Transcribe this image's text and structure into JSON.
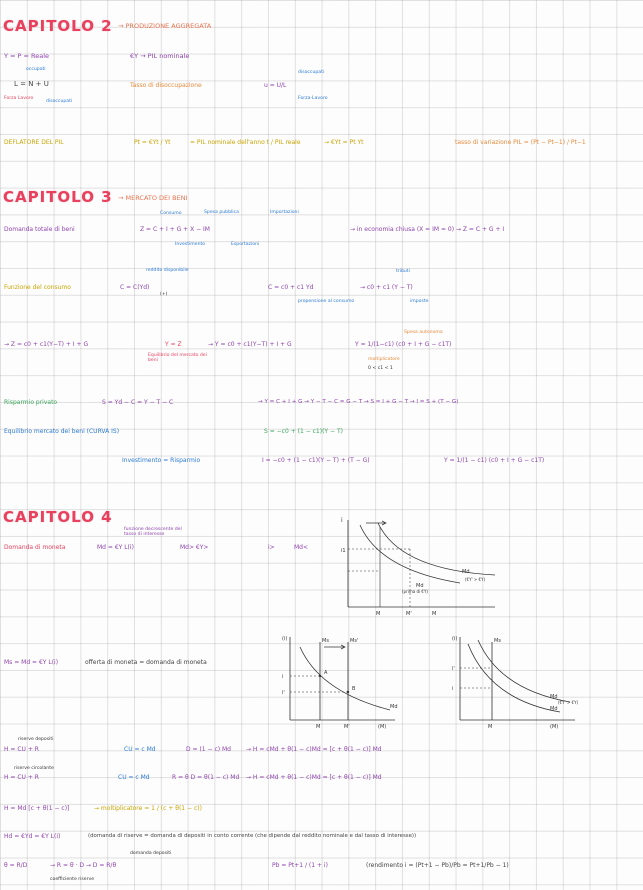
{
  "c2": {
    "title": "CAPITOLO 2",
    "subtitle": "→ PRODUZIONE AGGREGATA",
    "l1a": "Y = P = Reale",
    "l1b": "€Y → PIL nominale",
    "occupati": "occupati",
    "forza_lavoro_eq": "L = N + U",
    "forza_lavoro": "Forza Lavoro",
    "disoccupati": "disoccupati",
    "tasso_label": "Tasso di disoccupazione",
    "tasso_eq": "u = U/L",
    "disoccupati2": "disoccupati",
    "forza_lavoro2": "Forza-Lavoro",
    "deflatore_label": "DEFLATORE DEL PIL",
    "deflatore_eq": "Pt = €Yt / Yt",
    "pil_nom": "= PIL nominale dell'anno t / PIL reale",
    "arrow_eq": "→   €Yt = Pt Yt",
    "tasso_var": "tasso di variazione PIL = (Pt − Pt−1) / Pt−1"
  },
  "c3": {
    "title": "CAPITOLO 3",
    "subtitle": "→ MERCATO DEI BENI",
    "consumo": "Consumo",
    "spesa_pubblica": "Spesa pubblica",
    "importazioni": "Importazioni",
    "domanda_label": "Domanda totale di beni",
    "domanda_eq": "Z = C + I + G + X − IM",
    "investimento": "Investimento",
    "esportazioni": "Esportazioni",
    "economia_chiusa": "→ in economia chiusa (X = IM = 0)  →  Z = C + G + I",
    "reddito_disp": "reddito disponibile",
    "funzione_label": "Funzione del consumo",
    "funzione_eq": "C = C(Yd)",
    "funzione_sign": "(+)",
    "consumo_eq": "C = c0 + c1 Yd",
    "propensione": "propensione al consumo",
    "tributi": "tributi",
    "consumo_eq2": "→ c0 + c1 (Y − T)",
    "imposte": "imposte",
    "z_eq": "→ Z = c0 + c1(Y−T) + I + G",
    "eq_yz": "Y = Z",
    "equilibrio": "Equilibrio del mercato dei beni",
    "y_eq": "→ Y = c0 + c1(Y−T) + I + G",
    "spesa_autonoma": "Spesa autonoma",
    "y_solved": "Y = 1/(1−c1) (c0 + I + G − c1T)",
    "moltiplicatore": "moltiplicatore",
    "range": "0 < c1 < 1",
    "risparmio_label": "Risparmio privato",
    "risparmio_eq": "S = Yd − C  =  Y − T − C",
    "risparmio_eq2": "→  Y = C + I + G   →   Y − T − C = G − T   →   S = I + G − T   →   I = S + (T − G)",
    "equilibrio_is": "Equilibrio mercato dei beni (CURVA IS)",
    "s_eq": "S = −c0 + (1 − c1)(Y − T)",
    "inv_risp": "Investimento = Risparmio",
    "inv_eq": "I = −c0 + (1 − c1)(Y − T) + (T − G)",
    "y_final": "Y = 1/(1 − c1) (c0 + I + G − c1T)"
  },
  "c4": {
    "title": "CAPITOLO 4",
    "funzione_note": "funzione decrescente del tasso di interesse",
    "domanda_moneta": "Domanda di moneta",
    "md_eq": "Md = €Y L(i)",
    "md_arrow": "Md ↑  €Y ↑   i↑   Md ↓",
    "md_gt": "Md>  €Y>",
    "i_arrow": "i>",
    "md_c": "Md<",
    "eq_offerta": "Ms = Md = €Y L(i)",
    "offerta_label": "offerta di moneta = domanda di moneta",
    "riserve_dep": "riserve   depositi",
    "h_eq": "H = CU + R",
    "cu_eq": "CU = c Md",
    "d_eq": "D = (1 − c) Md",
    "h_eq2": "→  H = cMd + θ(1 − c)Md = [c + θ(1 − c)] Md",
    "riserve_circ": "riserve   circolante",
    "hcr": "H = CU + R",
    "cu2": "CU = c Md",
    "r_eq": "R = θ D = θ(1 − c) Md",
    "h_eq3": "→  H = cMd + θ(1 − c)Md = [c + θ(1 − c)] Md",
    "h_final": "H = Md [c + θ(1 − c)]",
    "molt_label": "→  moltiplicatore = 1 / (c + θ(1 − c))",
    "hd_eq": "Hd = €Yd = €Y L(i)",
    "domanda_circ": "(domanda di riserve = domanda di depositi in conto corrente (che dipende dal reddito nominale e dal tasso di interesse))",
    "dom_dep": "domanda depositi",
    "theta_eq": "θ = R/D",
    "r_theta": "→  R = θ · D  →  D = R/θ",
    "coeff_riserva": "coefficiente riserve",
    "pb_eq": "Pb = Pt+1 / (1 + i)",
    "rend_eq": "(rendimento  i = (Pt+1 − Pb)/Pb = Pt+1/Pb − 1)"
  },
  "graph1": {
    "y_label": "i",
    "i_label": "i1",
    "md_label": "Md",
    "md2_label": "Md",
    "md2_note": "(€Y' > €Y)",
    "prima": "(prima di €Y)",
    "m_label": "M",
    "m1_label": "M'",
    "m2_label": "M"
  },
  "graph2": {
    "y_label": "(i)",
    "ms_label": "Ms",
    "ms2_label": "Ms'",
    "i_label": "i",
    "i2_label": "i'",
    "a_label": "A",
    "b_label": "B",
    "x1": "M",
    "x2": "M'",
    "x3": "(M)",
    "md_label": "Md"
  },
  "graph3": {
    "y_label": "(i)",
    "ms_label": "Ms",
    "i_label": "i'",
    "i2_label": "i",
    "md1": "Md",
    "md2": "Md",
    "md_note": "(€Y' > €Y)",
    "x1": "M",
    "x2": "(M)"
  }
}
